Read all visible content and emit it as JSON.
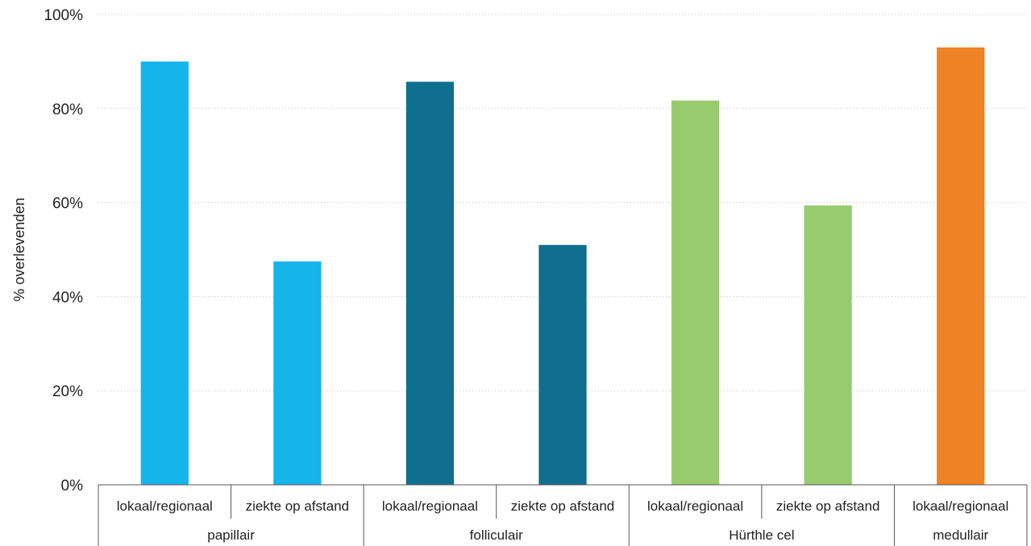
{
  "chart_data": {
    "type": "bar",
    "title": "",
    "xlabel": "",
    "ylabel": "% overlevenden",
    "ylim": [
      0,
      100
    ],
    "yticks": [
      0,
      20,
      40,
      60,
      80,
      100
    ],
    "ytick_labels": [
      "0%",
      "20%",
      "40%",
      "60%",
      "80%",
      "100%"
    ],
    "grid": true,
    "legend": "none",
    "groups": [
      {
        "label": "papillair",
        "color": "#13b5ea",
        "bars": [
          {
            "label": "lokaal/regionaal",
            "value": 90
          },
          {
            "label": "ziekte op afstand",
            "value": 47.5
          }
        ]
      },
      {
        "label": "folliculair",
        "color": "#0e6f8e",
        "bars": [
          {
            "label": "lokaal/regionaal",
            "value": 85.7
          },
          {
            "label": "ziekte op afstand",
            "value": 51
          }
        ]
      },
      {
        "label": "Hürthle cel",
        "color": "#98cb6e",
        "bars": [
          {
            "label": "lokaal/regionaal",
            "value": 81.7
          },
          {
            "label": "ziekte op afstand",
            "value": 59.4
          }
        ]
      },
      {
        "label": "medullair",
        "color": "#f08226",
        "bars": [
          {
            "label": "lokaal/regionaal",
            "value": 93
          }
        ]
      }
    ]
  }
}
